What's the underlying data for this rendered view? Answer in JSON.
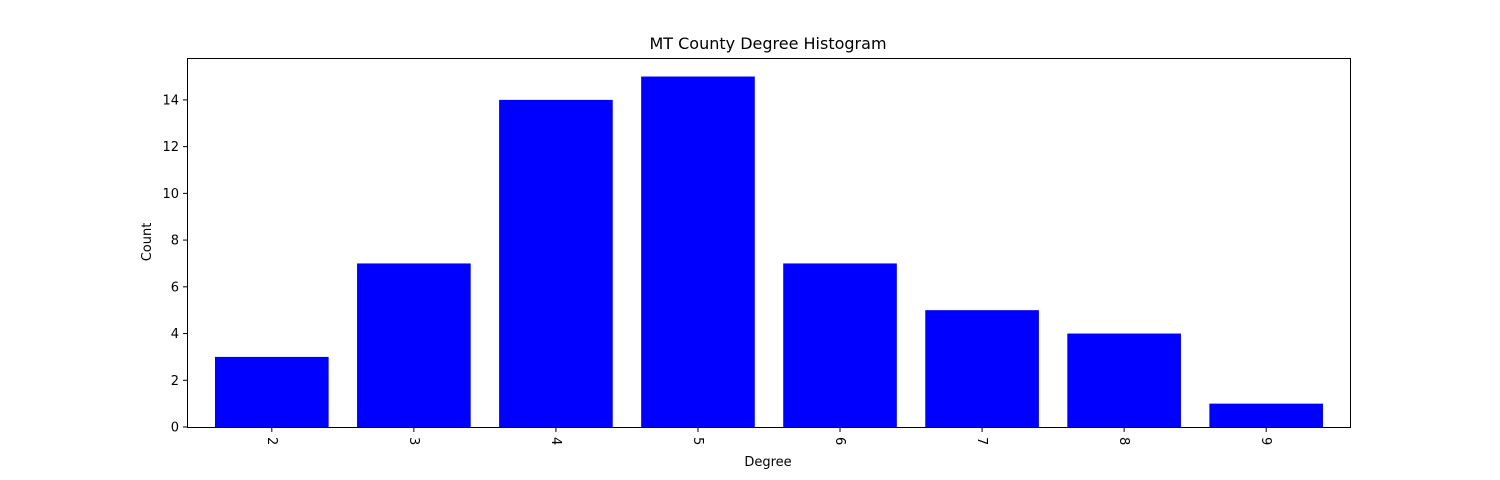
{
  "chart_data": {
    "type": "bar",
    "title": "MT County Degree Histogram",
    "xlabel": "Degree",
    "ylabel": "Count",
    "categories": [
      "2",
      "3",
      "4",
      "5",
      "6",
      "7",
      "8",
      "9"
    ],
    "values": [
      3,
      7,
      14,
      15,
      7,
      5,
      4,
      1
    ],
    "ylim": [
      0,
      15.75
    ],
    "yticks": [
      0,
      2,
      4,
      6,
      8,
      10,
      12,
      14
    ],
    "bar_color": "#0000ff",
    "grid": false,
    "legend": "none"
  }
}
